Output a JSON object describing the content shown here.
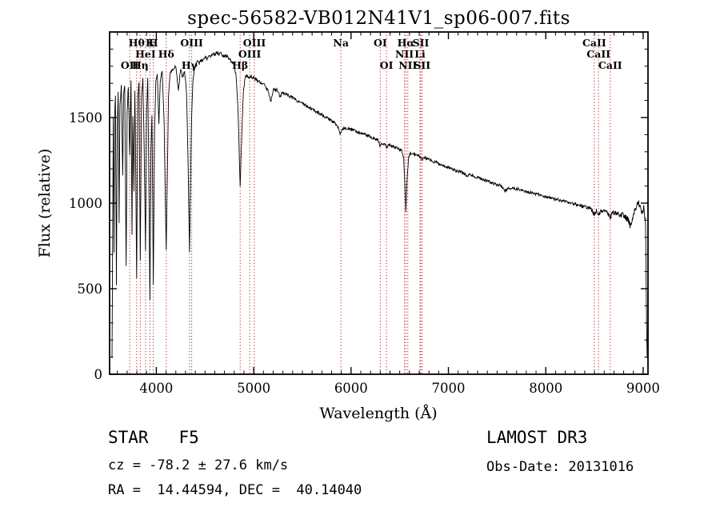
{
  "chart_data": {
    "type": "line",
    "title": "spec-56582-VB012N41V1_sp06-007.fits",
    "xlabel": "Wavelength (Å)",
    "ylabel": "Flux (relative)",
    "xlim": [
      3520,
      9050
    ],
    "ylim": [
      0,
      2000
    ],
    "xticks": [
      4000,
      5000,
      6000,
      7000,
      8000,
      9000
    ],
    "yticks": [
      0,
      500,
      1000,
      1500
    ],
    "x_minor_step": 100,
    "y_minor_step": 100,
    "grid": false,
    "legend": "none",
    "line_color": "#000000",
    "marker_line_color": "#b22222",
    "spectral_lines": [
      {
        "wl": 3727,
        "label": "OII",
        "row": 3
      },
      {
        "wl": 3798,
        "label": "Hθ",
        "row": 1
      },
      {
        "wl": 3835,
        "label": "Hη",
        "row": 3
      },
      {
        "wl": 3889,
        "label": "HeI",
        "row": 2
      },
      {
        "wl": 3934,
        "label": "K",
        "row": 1
      },
      {
        "wl": 3969,
        "label": "H",
        "row": 1
      },
      {
        "wl": 4102,
        "label": "Hδ",
        "row": 2
      },
      {
        "wl": 4341,
        "label": "Hγ",
        "row": 3
      },
      {
        "wl": 4363,
        "label": "OIII",
        "row": 1
      },
      {
        "wl": 4861,
        "label": "Hβ",
        "row": 3
      },
      {
        "wl": 4959,
        "label": "OIII",
        "row": 2
      },
      {
        "wl": 5007,
        "label": "OIII",
        "row": 1
      },
      {
        "wl": 5896,
        "label": "Na",
        "row": 1
      },
      {
        "wl": 6300,
        "label": "OI",
        "row": 1
      },
      {
        "wl": 6364,
        "label": "OI",
        "row": 3
      },
      {
        "wl": 6548,
        "label": "NII",
        "row": 2
      },
      {
        "wl": 6563,
        "label": "Hα",
        "row": 1
      },
      {
        "wl": 6583,
        "label": "NII",
        "row": 3
      },
      {
        "wl": 6708,
        "label": "Li",
        "row": 2
      },
      {
        "wl": 6716,
        "label": "SII",
        "row": 1
      },
      {
        "wl": 6731,
        "label": "SII",
        "row": 3
      },
      {
        "wl": 8498,
        "label": "CaII",
        "row": 1
      },
      {
        "wl": 8542,
        "label": "CaII",
        "row": 2
      },
      {
        "wl": 8662,
        "label": "CaII",
        "row": 3
      }
    ],
    "series": [
      {
        "name": "flux",
        "points": [
          [
            3545,
            100
          ],
          [
            3552,
            950
          ],
          [
            3558,
            1500
          ],
          [
            3565,
            700
          ],
          [
            3572,
            1520
          ],
          [
            3580,
            1630
          ],
          [
            3590,
            520
          ],
          [
            3598,
            1420
          ],
          [
            3608,
            1660
          ],
          [
            3618,
            900
          ],
          [
            3626,
            1560
          ],
          [
            3640,
            1690
          ],
          [
            3655,
            1150
          ],
          [
            3663,
            1620
          ],
          [
            3675,
            1690
          ],
          [
            3690,
            620
          ],
          [
            3700,
            1520
          ],
          [
            3712,
            1690
          ],
          [
            3727,
            1280
          ],
          [
            3740,
            1700
          ],
          [
            3750,
            820
          ],
          [
            3758,
            1520
          ],
          [
            3770,
            1080
          ],
          [
            3780,
            1670
          ],
          [
            3798,
            560
          ],
          [
            3810,
            1620
          ],
          [
            3822,
            1710
          ],
          [
            3835,
            660
          ],
          [
            3848,
            1620
          ],
          [
            3862,
            1730
          ],
          [
            3875,
            1320
          ],
          [
            3889,
            720
          ],
          [
            3900,
            1520
          ],
          [
            3912,
            1730
          ],
          [
            3925,
            1020
          ],
          [
            3934,
            440
          ],
          [
            3945,
            1320
          ],
          [
            3955,
            1520
          ],
          [
            3969,
            530
          ],
          [
            3982,
            1420
          ],
          [
            3995,
            1710
          ],
          [
            4010,
            1750
          ],
          [
            4026,
            1470
          ],
          [
            4040,
            1710
          ],
          [
            4060,
            1770
          ],
          [
            4080,
            1460
          ],
          [
            4095,
            920
          ],
          [
            4102,
            730
          ],
          [
            4112,
            1120
          ],
          [
            4125,
            1620
          ],
          [
            4140,
            1750
          ],
          [
            4160,
            1780
          ],
          [
            4180,
            1790
          ],
          [
            4200,
            1800
          ],
          [
            4227,
            1660
          ],
          [
            4250,
            1790
          ],
          [
            4270,
            1730
          ],
          [
            4290,
            1770
          ],
          [
            4310,
            1650
          ],
          [
            4325,
            1260
          ],
          [
            4341,
            710
          ],
          [
            4352,
            1160
          ],
          [
            4363,
            1520
          ],
          [
            4375,
            1710
          ],
          [
            4390,
            1780
          ],
          [
            4405,
            1810
          ],
          [
            4420,
            1830
          ],
          [
            4440,
            1815
          ],
          [
            4460,
            1840
          ],
          [
            4480,
            1830
          ],
          [
            4500,
            1855
          ],
          [
            4520,
            1845
          ],
          [
            4540,
            1865
          ],
          [
            4560,
            1855
          ],
          [
            4580,
            1875
          ],
          [
            4600,
            1865
          ],
          [
            4620,
            1880
          ],
          [
            4640,
            1870
          ],
          [
            4660,
            1878
          ],
          [
            4680,
            1865
          ],
          [
            4700,
            1858
          ],
          [
            4720,
            1862
          ],
          [
            4740,
            1848
          ],
          [
            4760,
            1838
          ],
          [
            4780,
            1820
          ],
          [
            4800,
            1798
          ],
          [
            4820,
            1740
          ],
          [
            4840,
            1520
          ],
          [
            4861,
            1090
          ],
          [
            4878,
            1420
          ],
          [
            4895,
            1660
          ],
          [
            4910,
            1730
          ],
          [
            4930,
            1745
          ],
          [
            4950,
            1735
          ],
          [
            4970,
            1740
          ],
          [
            4990,
            1735
          ],
          [
            5010,
            1728
          ],
          [
            5030,
            1722
          ],
          [
            5050,
            1712
          ],
          [
            5075,
            1705
          ],
          [
            5100,
            1695
          ],
          [
            5125,
            1680
          ],
          [
            5150,
            1650
          ],
          [
            5175,
            1590
          ],
          [
            5200,
            1660
          ],
          [
            5225,
            1665
          ],
          [
            5250,
            1655
          ],
          [
            5270,
            1618
          ],
          [
            5290,
            1645
          ],
          [
            5320,
            1640
          ],
          [
            5350,
            1632
          ],
          [
            5380,
            1622
          ],
          [
            5410,
            1612
          ],
          [
            5440,
            1602
          ],
          [
            5470,
            1592
          ],
          [
            5500,
            1582
          ],
          [
            5530,
            1572
          ],
          [
            5560,
            1562
          ],
          [
            5590,
            1552
          ],
          [
            5620,
            1542
          ],
          [
            5650,
            1532
          ],
          [
            5680,
            1522
          ],
          [
            5710,
            1512
          ],
          [
            5740,
            1502
          ],
          [
            5770,
            1492
          ],
          [
            5800,
            1482
          ],
          [
            5830,
            1472
          ],
          [
            5860,
            1452
          ],
          [
            5890,
            1400
          ],
          [
            5905,
            1430
          ],
          [
            5930,
            1442
          ],
          [
            5960,
            1438
          ],
          [
            5990,
            1432
          ],
          [
            6020,
            1426
          ],
          [
            6050,
            1420
          ],
          [
            6080,
            1414
          ],
          [
            6110,
            1408
          ],
          [
            6140,
            1402
          ],
          [
            6170,
            1395
          ],
          [
            6200,
            1388
          ],
          [
            6230,
            1380
          ],
          [
            6260,
            1372
          ],
          [
            6280,
            1365
          ],
          [
            6300,
            1332
          ],
          [
            6320,
            1352
          ],
          [
            6340,
            1347
          ],
          [
            6364,
            1327
          ],
          [
            6385,
            1342
          ],
          [
            6410,
            1337
          ],
          [
            6440,
            1330
          ],
          [
            6470,
            1322
          ],
          [
            6495,
            1314
          ],
          [
            6520,
            1307
          ],
          [
            6540,
            1272
          ],
          [
            6552,
            1120
          ],
          [
            6563,
            950
          ],
          [
            6575,
            1135
          ],
          [
            6590,
            1262
          ],
          [
            6610,
            1292
          ],
          [
            6640,
            1290
          ],
          [
            6670,
            1284
          ],
          [
            6700,
            1277
          ],
          [
            6716,
            1262
          ],
          [
            6731,
            1257
          ],
          [
            6750,
            1267
          ],
          [
            6780,
            1260
          ],
          [
            6810,
            1252
          ],
          [
            6840,
            1245
          ],
          [
            6870,
            1238
          ],
          [
            6900,
            1231
          ],
          [
            6930,
            1224
          ],
          [
            6960,
            1217
          ],
          [
            6990,
            1210
          ],
          [
            7020,
            1203
          ],
          [
            7060,
            1195
          ],
          [
            7100,
            1187
          ],
          [
            7140,
            1179
          ],
          [
            7180,
            1162
          ],
          [
            7220,
            1165
          ],
          [
            7260,
            1157
          ],
          [
            7300,
            1149
          ],
          [
            7340,
            1141
          ],
          [
            7380,
            1133
          ],
          [
            7420,
            1125
          ],
          [
            7460,
            1117
          ],
          [
            7500,
            1109
          ],
          [
            7540,
            1102
          ],
          [
            7580,
            1072
          ],
          [
            7620,
            1087
          ],
          [
            7660,
            1090
          ],
          [
            7700,
            1084
          ],
          [
            7740,
            1078
          ],
          [
            7780,
            1072
          ],
          [
            7820,
            1066
          ],
          [
            7860,
            1060
          ],
          [
            7900,
            1054
          ],
          [
            7940,
            1048
          ],
          [
            7980,
            1042
          ],
          [
            8020,
            1036
          ],
          [
            8060,
            1030
          ],
          [
            8100,
            1024
          ],
          [
            8140,
            1018
          ],
          [
            8180,
            1012
          ],
          [
            8220,
            1006
          ],
          [
            8260,
            1000
          ],
          [
            8300,
            994
          ],
          [
            8340,
            988
          ],
          [
            8380,
            982
          ],
          [
            8420,
            976
          ],
          [
            8460,
            970
          ],
          [
            8498,
            932
          ],
          [
            8520,
            960
          ],
          [
            8542,
            927
          ],
          [
            8565,
            954
          ],
          [
            8600,
            950
          ],
          [
            8630,
            946
          ],
          [
            8662,
            917
          ],
          [
            8690,
            944
          ],
          [
            8720,
            940
          ],
          [
            8760,
            935
          ],
          [
            8800,
            927
          ],
          [
            8840,
            907
          ],
          [
            8870,
            867
          ],
          [
            8900,
            932
          ],
          [
            8930,
            987
          ],
          [
            8955,
            1002
          ],
          [
            8975,
            962
          ],
          [
            8995,
            947
          ],
          [
            9010,
            977
          ],
          [
            9025,
            862
          ],
          [
            9035,
            300
          ],
          [
            9042,
            95
          ]
        ]
      }
    ],
    "noise": {
      "base": 9,
      "blue_extra": 8,
      "red_extra": 12
    }
  },
  "annotations": {
    "class_line": "STAR   F5",
    "cz_line": "cz = -78.2 ± 27.6 km/s",
    "radec_line": "RA =  14.44594, DEC =  40.14040",
    "survey": "LAMOST DR3",
    "obsdate_line": "Obs-Date: 20131016"
  }
}
